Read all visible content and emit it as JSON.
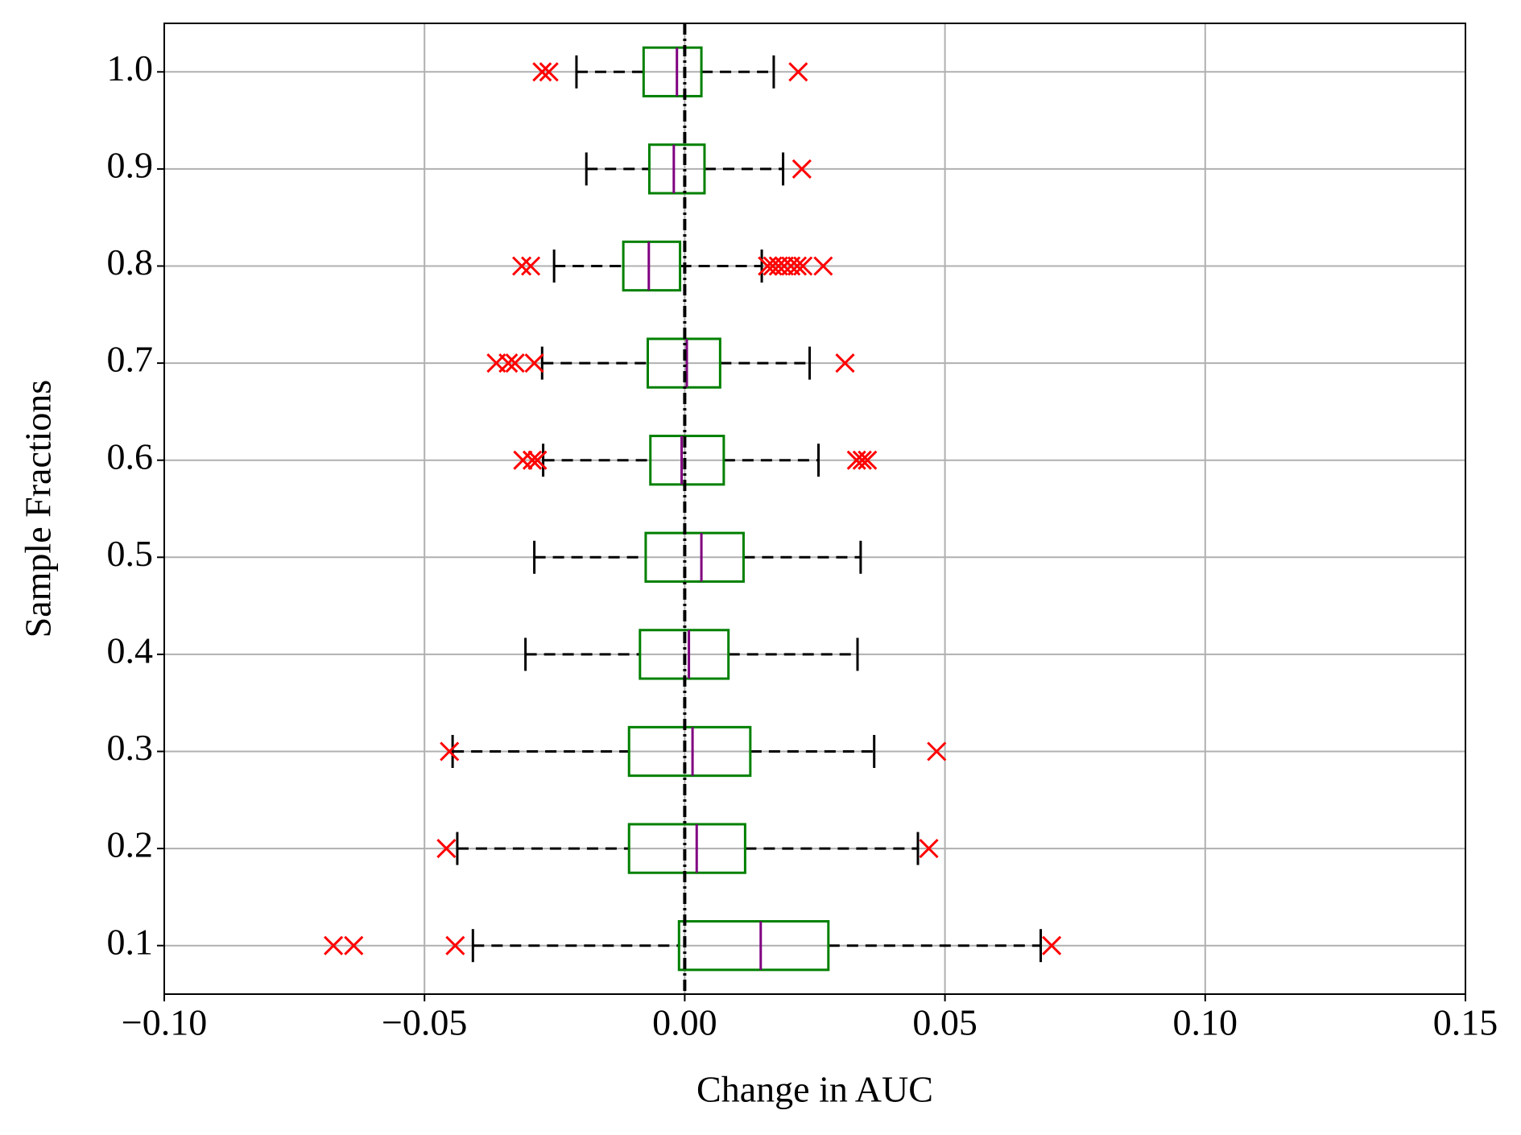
{
  "chart_data": {
    "type": "boxplot",
    "xlabel": "Change in AUC",
    "ylabel": "Sample Fractions",
    "categories": [
      "0.1",
      "0.2",
      "0.3",
      "0.4",
      "0.5",
      "0.6",
      "0.7",
      "0.8",
      "0.9",
      "1.0"
    ],
    "boxes": [
      {
        "whislo": -0.0407,
        "q1": -0.0011,
        "med": 0.0146,
        "q3": 0.0276,
        "whishi": 0.0684,
        "fliers": [
          -0.0675,
          -0.0636,
          -0.0441,
          0.0705
        ]
      },
      {
        "whislo": -0.0437,
        "q1": -0.0107,
        "med": 0.0023,
        "q3": 0.0116,
        "whishi": 0.0448,
        "fliers": [
          -0.0458,
          0.0469
        ]
      },
      {
        "whislo": -0.0446,
        "q1": -0.0107,
        "med": 0.0015,
        "q3": 0.0126,
        "whishi": 0.0364,
        "fliers": [
          -0.0452,
          0.0484
        ]
      },
      {
        "whislo": -0.0306,
        "q1": -0.0086,
        "med": 0.0008,
        "q3": 0.0084,
        "whishi": 0.0332,
        "fliers": []
      },
      {
        "whislo": -0.0289,
        "q1": -0.0075,
        "med": 0.0032,
        "q3": 0.0113,
        "whishi": 0.0338,
        "fliers": []
      },
      {
        "whislo": -0.0272,
        "q1": -0.0066,
        "med": -0.0006,
        "q3": 0.0075,
        "whishi": 0.0257,
        "fliers": [
          -0.0311,
          -0.0293,
          -0.0283,
          0.033,
          0.0341,
          0.0351
        ]
      },
      {
        "whislo": -0.0274,
        "q1": -0.0071,
        "med": 0.0004,
        "q3": 0.0068,
        "whishi": 0.024,
        "fliers": [
          -0.0362,
          -0.0339,
          -0.0326,
          -0.0289,
          0.0308
        ]
      },
      {
        "whislo": -0.0251,
        "q1": -0.0118,
        "med": -0.0069,
        "q3": -0.0009,
        "whishi": 0.0148,
        "fliers": [
          -0.0313,
          -0.0296,
          0.0159,
          0.0169,
          0.018,
          0.0191,
          0.0204,
          0.0216,
          0.0227,
          0.0266
        ]
      },
      {
        "whislo": -0.0189,
        "q1": -0.0068,
        "med": -0.0021,
        "q3": 0.0038,
        "whishi": 0.0189,
        "fliers": [
          0.0225
        ]
      },
      {
        "whislo": -0.0208,
        "q1": -0.0079,
        "med": -0.0015,
        "q3": 0.0032,
        "whishi": 0.0171,
        "fliers": [
          -0.0274,
          -0.0261,
          0.0218
        ]
      }
    ],
    "box_color": "#008000",
    "median_color": "#800080",
    "flier_color": "#ff0000",
    "whisker_color": "#000000",
    "vline": 0,
    "xlim": [
      -0.1,
      0.15
    ],
    "xticks": [
      {
        "value": -0.1,
        "label": "−0.10"
      },
      {
        "value": -0.05,
        "label": "−0.05"
      },
      {
        "value": 0,
        "label": "0.00"
      },
      {
        "value": 0.05,
        "label": "0.05"
      },
      {
        "value": 0.1,
        "label": "0.10"
      },
      {
        "value": 0.15,
        "label": "0.15"
      }
    ],
    "grid": true
  }
}
